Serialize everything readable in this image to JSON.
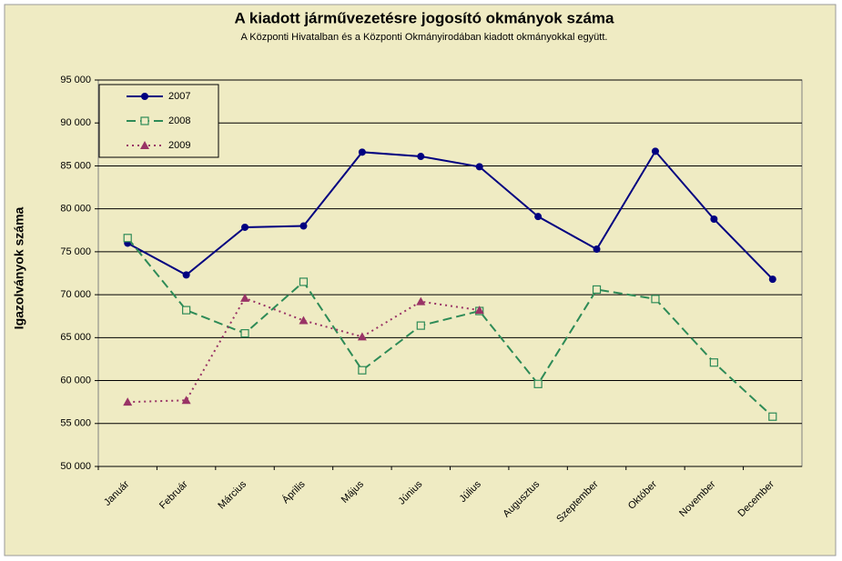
{
  "chart_data": {
    "type": "line",
    "title": "A  kiadott járművezetésre  jogosító okmányok száma",
    "subtitle": "A  Központi Hivatalban és a Központi Okmányirodában kiadott okmányokkal együtt.",
    "y_label": "Igazolványok száma",
    "categories": [
      "Január",
      "Február",
      "Március",
      "Április",
      "Május",
      "Június",
      "Július",
      "Augusztus",
      "Szeptember",
      "Október",
      "November",
      "December"
    ],
    "series": [
      {
        "name": "2007",
        "color": "#000080",
        "marker": "circle",
        "line": "solid",
        "values": [
          76000,
          72300,
          77850,
          78000,
          86600,
          86100,
          84900,
          79100,
          75300,
          86700,
          78800,
          71800
        ]
      },
      {
        "name": "2008",
        "color": "#2e8b57",
        "marker": "square",
        "line": "dashed",
        "values": [
          76600,
          68200,
          65500,
          71500,
          61200,
          66400,
          68100,
          59600,
          70600,
          69500,
          62100,
          55800
        ]
      },
      {
        "name": "2009",
        "color": "#993366",
        "marker": "triangle",
        "line": "dotted",
        "values": [
          57500,
          57700,
          69600,
          67000,
          65100,
          69200,
          68200,
          null,
          null,
          null,
          null,
          null
        ]
      }
    ],
    "ylim": [
      50000,
      95000
    ],
    "yticks": [
      {
        "value": 50000,
        "label": "50 000"
      },
      {
        "value": 55000,
        "label": "55 000"
      },
      {
        "value": 60000,
        "label": "60 000"
      },
      {
        "value": 65000,
        "label": "65 000"
      },
      {
        "value": 70000,
        "label": "70 000"
      },
      {
        "value": 75000,
        "label": "75 000"
      },
      {
        "value": 80000,
        "label": "80 000"
      },
      {
        "value": 85000,
        "label": "85 000"
      },
      {
        "value": 90000,
        "label": "90 000"
      },
      {
        "value": 95000,
        "label": "95 000"
      }
    ],
    "grid": true,
    "legend": "top-left"
  }
}
